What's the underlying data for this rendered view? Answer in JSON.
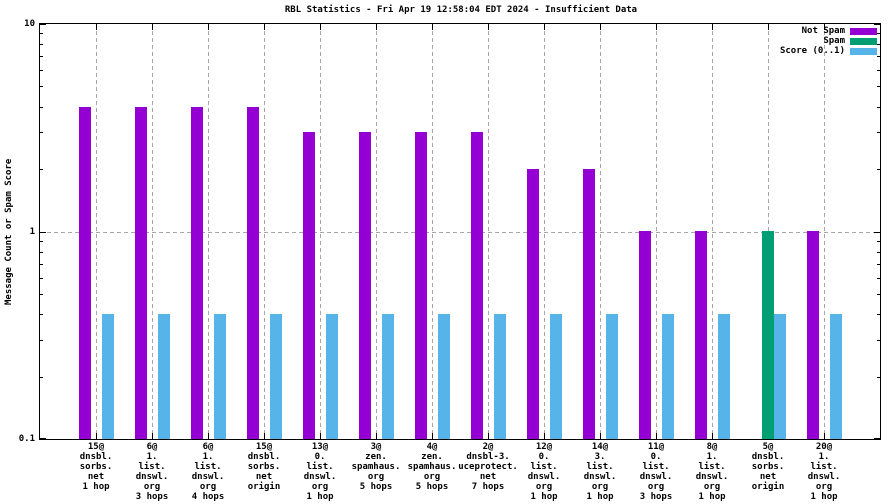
{
  "window": {
    "background": "#ffffff"
  },
  "chart_data": {
    "type": "bar",
    "title": "RBL Statistics - Fri Apr 19 12:58:04 EDT 2024 - Insufficient Data",
    "ylabel": "Message Count or Spam Score",
    "xlabel": "",
    "yscale": "log",
    "ylim": [
      0.1,
      10
    ],
    "yticks": [
      {
        "value": 10,
        "label": "10"
      },
      {
        "value": 1,
        "label": "1"
      },
      {
        "value": 0.1,
        "label": "0.1"
      }
    ],
    "minor_yticks": [
      0.2,
      0.3,
      0.4,
      0.5,
      0.6,
      0.7,
      0.8,
      0.9,
      2,
      3,
      4,
      5,
      6,
      7,
      8,
      9
    ],
    "hgridlines": [
      1
    ],
    "grid": "dashed-gray-at-each-category-and-y1",
    "grid_color": "#a6a6a6",
    "legend_position": "top-right-inside",
    "categories": [
      [
        "15@",
        "dnsbl.",
        "sorbs.",
        "net",
        "1 hop"
      ],
      [
        "6@",
        "1.",
        "list.",
        "dnswl.",
        "org",
        "3 hops"
      ],
      [
        "6@",
        "1.",
        "list.",
        "dnswl.",
        "org",
        "4 hops"
      ],
      [
        "15@",
        "dnsbl.",
        "sorbs.",
        "net",
        "origin"
      ],
      [
        "13@",
        "0.",
        "list.",
        "dnswl.",
        "org",
        "1 hop"
      ],
      [
        "3@",
        "zen.",
        "spamhaus.",
        "org",
        "5 hops"
      ],
      [
        "4@",
        "zen.",
        "spamhaus.",
        "org",
        "5 hops"
      ],
      [
        "2@",
        "dnsbl-3.",
        "uceprotect.",
        "net",
        "7 hops"
      ],
      [
        "12@",
        "0.",
        "list.",
        "dnswl.",
        "org",
        "1 hop"
      ],
      [
        "14@",
        "3.",
        "list.",
        "dnswl.",
        "org",
        "1 hop"
      ],
      [
        "11@",
        "0.",
        "list.",
        "dnswl.",
        "org",
        "3 hops"
      ],
      [
        "8@",
        "1.",
        "list.",
        "dnswl.",
        "org",
        "1 hop"
      ],
      [
        "5@",
        "dnsbl.",
        "sorbs.",
        "net",
        "origin"
      ],
      [
        "20@",
        "1.",
        "list.",
        "dnswl.",
        "org",
        "1 hop"
      ]
    ],
    "series": [
      {
        "name": "Not Spam",
        "color": "#9400d3",
        "values": [
          4,
          4,
          4,
          4,
          3,
          3,
          3,
          3,
          2,
          2,
          1,
          1,
          0,
          1
        ]
      },
      {
        "name": "Spam",
        "color": "#009e73",
        "values": [
          0,
          0,
          0,
          0,
          0,
          0,
          0,
          0,
          0,
          0,
          0,
          0,
          1,
          0
        ]
      },
      {
        "name": "Score (0..1)",
        "color": "#56b4e9",
        "values": [
          0.4,
          0.4,
          0.4,
          0.4,
          0.4,
          0.4,
          0.4,
          0.4,
          0.4,
          0.4,
          0.4,
          0.4,
          0.4,
          0.4
        ]
      }
    ]
  }
}
